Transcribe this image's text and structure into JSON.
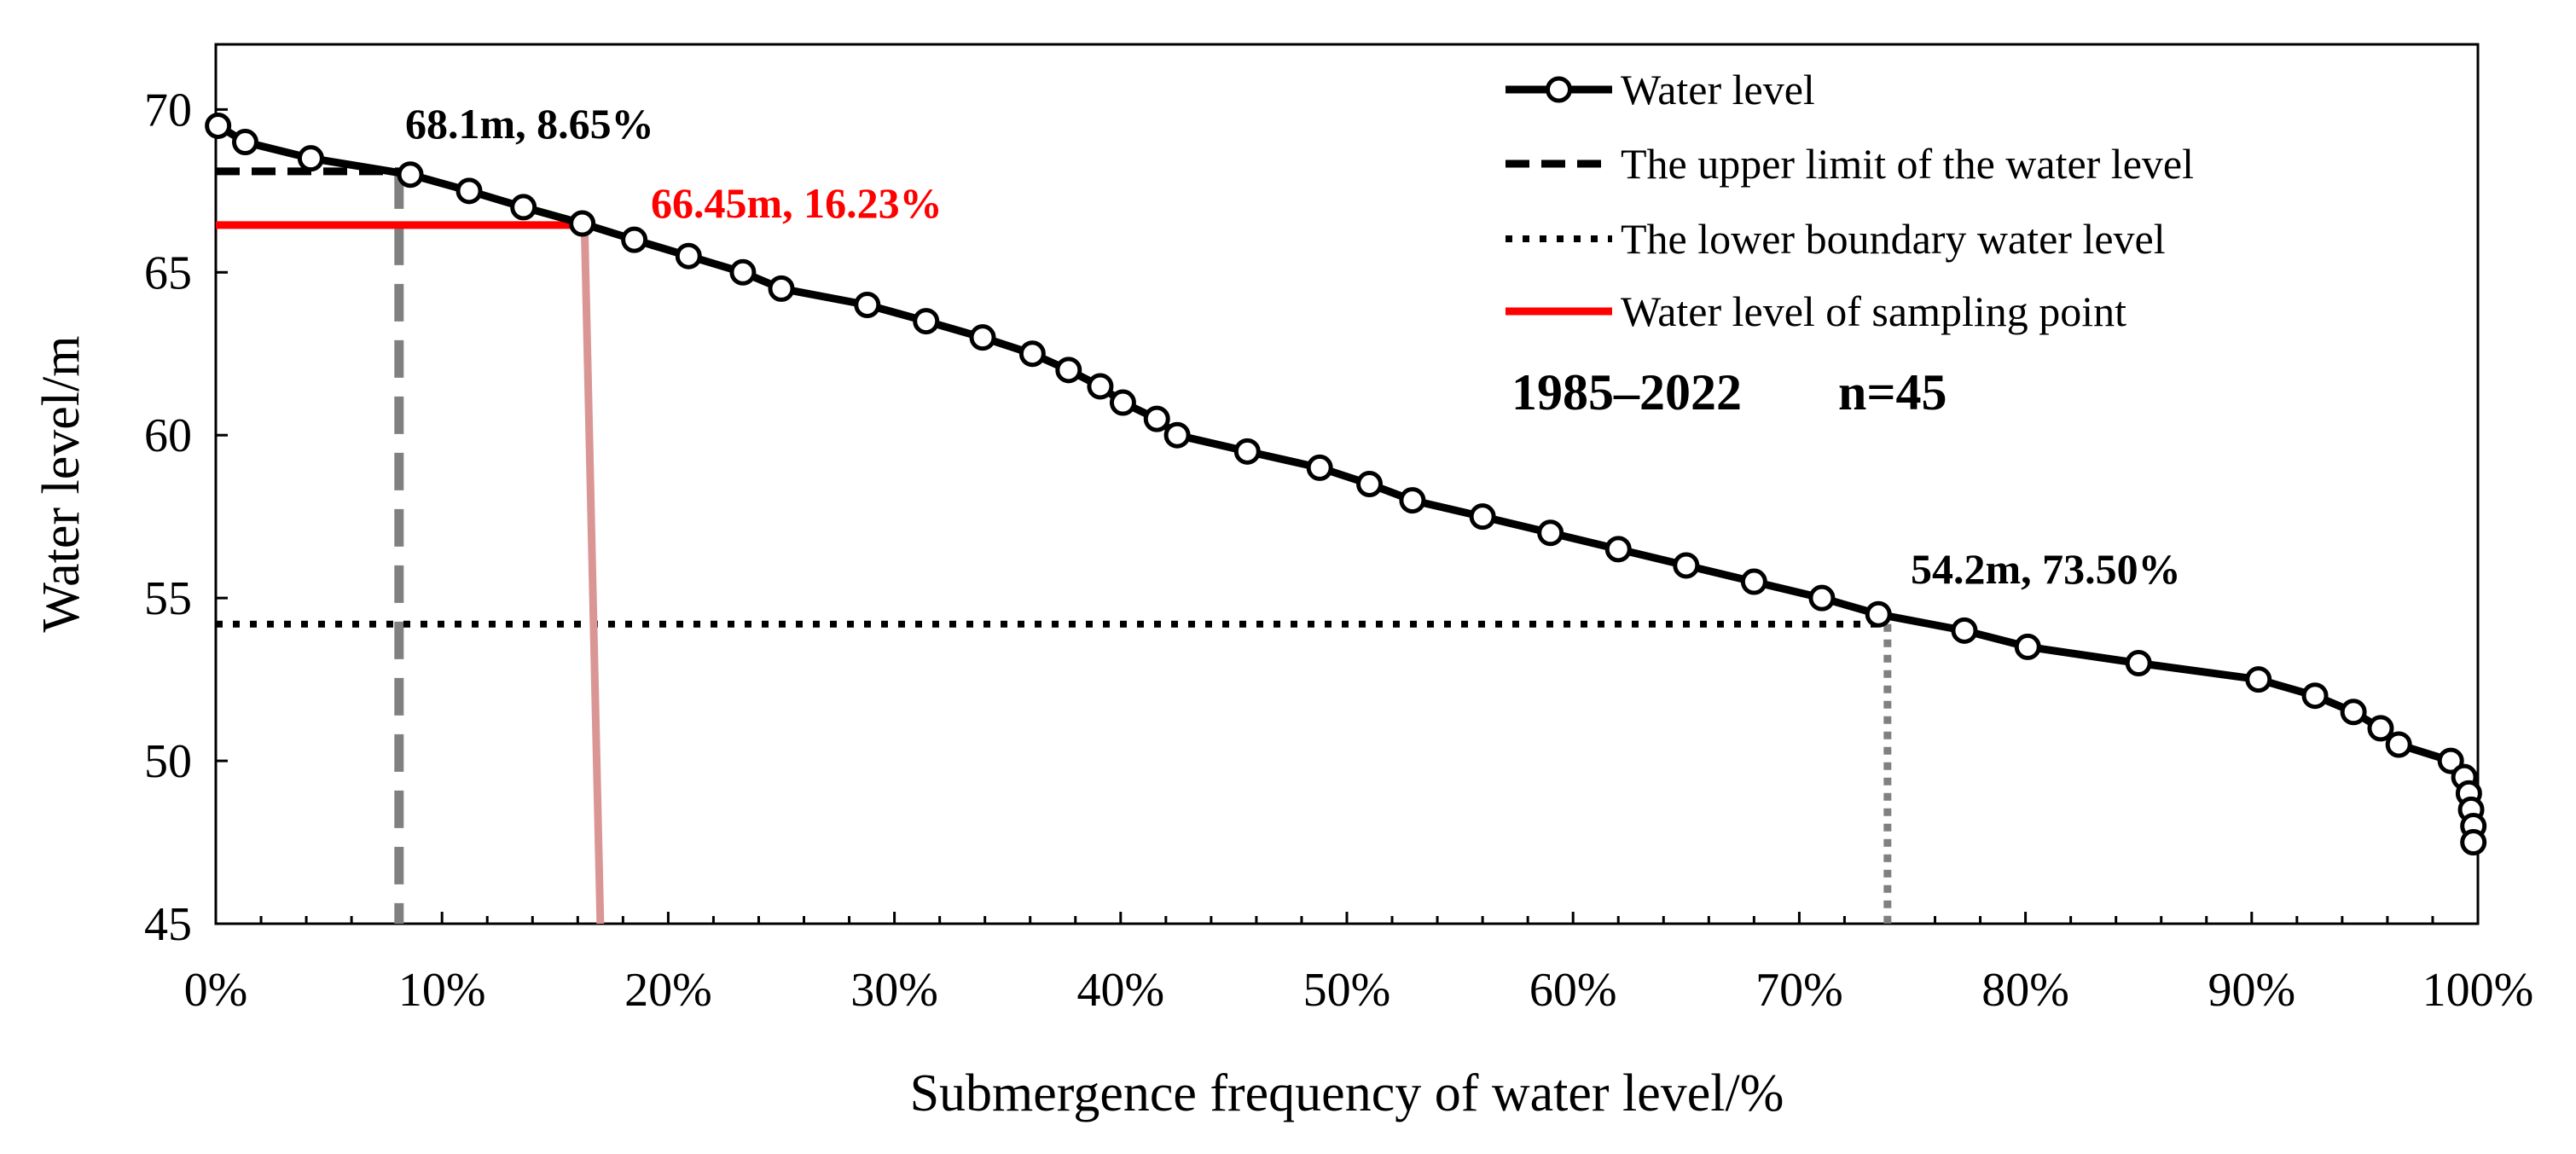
{
  "chart_data": {
    "type": "line",
    "xlabel": "Submergence frequency of water level/%",
    "ylabel": "Water level/m",
    "xlim": [
      0,
      100
    ],
    "ylim": [
      45,
      72
    ],
    "x_ticks": [
      0,
      10,
      20,
      30,
      40,
      50,
      60,
      70,
      80,
      90,
      100
    ],
    "x_tick_labels": [
      "0%",
      "10%",
      "20%",
      "30%",
      "40%",
      "50%",
      "60%",
      "70%",
      "80%",
      "90%",
      "100%"
    ],
    "y_ticks": [
      45,
      50,
      55,
      60,
      65,
      70
    ],
    "y_tick_labels": [
      "45",
      "50",
      "55",
      "60",
      "65",
      "70"
    ],
    "series": [
      {
        "name": "Water level",
        "color": "#000000",
        "marker": "open-circle",
        "x": [
          0.1,
          1.3,
          4.2,
          8.6,
          11.2,
          13.6,
          16.2,
          18.5,
          20.9,
          23.3,
          25.0,
          28.8,
          31.4,
          33.9,
          36.1,
          37.7,
          39.1,
          40.1,
          41.6,
          42.5,
          45.6,
          48.8,
          51.0,
          52.9,
          56.0,
          59.0,
          62.0,
          65.0,
          68.0,
          71.0,
          73.5,
          77.3,
          80.1,
          85.0,
          90.3,
          92.8,
          94.5,
          95.7,
          96.5,
          98.8,
          99.4,
          99.6,
          99.7,
          99.8,
          99.8
        ],
        "y": [
          69.5,
          69.0,
          68.5,
          68.0,
          67.5,
          67.0,
          66.5,
          66.0,
          65.5,
          65.0,
          64.5,
          64.0,
          63.5,
          63.0,
          62.5,
          62.0,
          61.5,
          61.0,
          60.5,
          60.0,
          59.5,
          59.0,
          58.5,
          58.0,
          57.5,
          57.0,
          56.5,
          56.0,
          55.5,
          55.0,
          54.5,
          54.0,
          53.5,
          53.0,
          52.5,
          52.0,
          51.5,
          51.0,
          50.5,
          50.0,
          49.5,
          49.0,
          48.5,
          48.0,
          47.5
        ]
      }
    ],
    "reference_lines": {
      "upper_limit": {
        "name": "The upper limit of the water level",
        "y": 68.1,
        "x_drop": 8.1,
        "color": "#000000",
        "drop_color": "#808080",
        "style": "dashed"
      },
      "lower_boundary": {
        "name": "The lower boundary water level",
        "y": 54.2,
        "x_drop": 73.9,
        "color": "#000000",
        "drop_color": "#808080",
        "style": "dotted"
      },
      "sampling_point": {
        "name": "Water level of sampling point",
        "y": 66.45,
        "x_top": 16.3,
        "x_bottom": 17.0,
        "color": "#ff0000",
        "drop_color": "#d99694",
        "style": "solid"
      }
    },
    "annotations": [
      {
        "text": "68.1m, 8.65%",
        "color": "#000000"
      },
      {
        "text": "66.45m, 16.23%",
        "color": "#ff0000"
      },
      {
        "text": "54.2m, 73.50%",
        "color": "#000000"
      }
    ],
    "legend": {
      "position": "top-right",
      "entries": [
        "Water level",
        "The upper limit of the water level",
        "The lower boundary water level",
        "Water level of sampling point"
      ]
    },
    "info": {
      "period": "1985–2022",
      "n": "n=45"
    }
  }
}
